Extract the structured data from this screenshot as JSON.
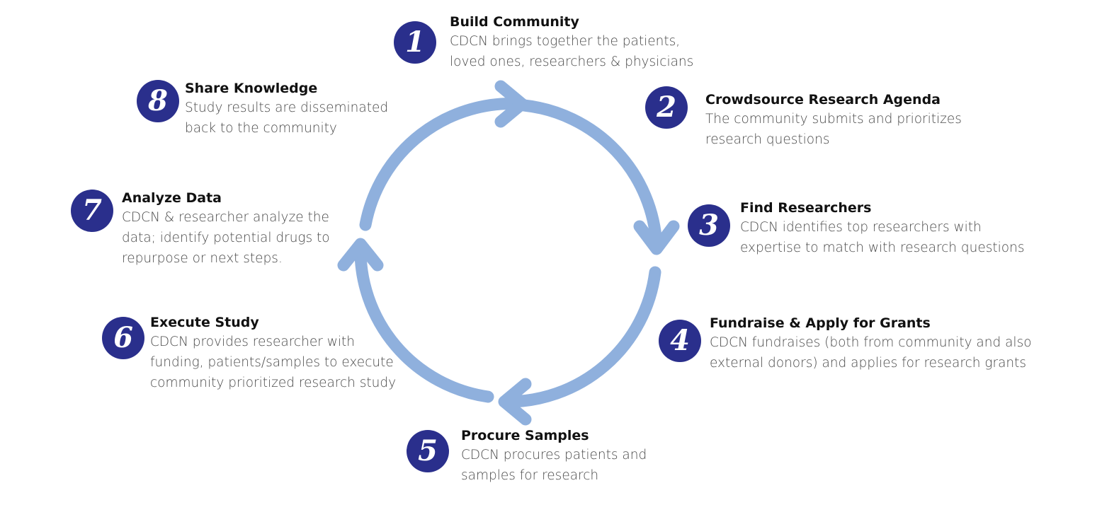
{
  "colors": {
    "badge": "#2a2f8c",
    "arrow": "#8fb0dd"
  },
  "steps": [
    {
      "number": "1",
      "title": "Build Community",
      "lines": [
        "CDCN brings together the patients,",
        "loved ones, researchers & physicians"
      ]
    },
    {
      "number": "2",
      "title": "Crowdsource Research Agenda",
      "lines": [
        "The community submits and prioritizes",
        "research questions"
      ]
    },
    {
      "number": "3",
      "title": "Find Researchers",
      "lines": [
        "CDCN identifies top researchers with",
        "expertise to match with research questions"
      ]
    },
    {
      "number": "4",
      "title": "Fundraise & Apply for Grants",
      "lines": [
        "CDCN fundraises (both from community and also",
        "external donors) and applies for research grants"
      ]
    },
    {
      "number": "5",
      "title": "Procure Samples",
      "lines": [
        "CDCN procures patients and",
        "samples for research"
      ]
    },
    {
      "number": "6",
      "title": "Execute Study",
      "lines": [
        "CDCN provides researcher with",
        "funding, patients/samples to execute",
        "community prioritized research study"
      ]
    },
    {
      "number": "7",
      "title": "Analyze Data",
      "lines": [
        "CDCN & researcher analyze the",
        "data; identify potential drugs to",
        "repurpose or next steps."
      ]
    },
    {
      "number": "8",
      "title": "Share Knowledge",
      "lines": [
        "Study results are disseminated",
        "back to the community"
      ]
    }
  ]
}
